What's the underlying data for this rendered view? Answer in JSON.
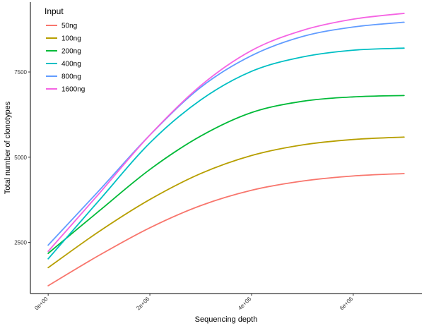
{
  "chart_data": {
    "type": "line",
    "xlabel": "Sequencing depth",
    "ylabel": "Total number of clonotypes",
    "xlim": [
      -350000,
      7350000
    ],
    "ylim": [
      1000,
      9550
    ],
    "x_ticks": [
      0,
      2000000,
      4000000,
      6000000
    ],
    "x_tick_labels": [
      "0e+00",
      "2e+06",
      "4e+06",
      "6e+06"
    ],
    "y_ticks": [
      2500,
      5000,
      7500
    ],
    "y_tick_labels": [
      "2500",
      "5000",
      "7500"
    ],
    "grid": false,
    "legend": {
      "title": "Input",
      "position": "top-left"
    },
    "x": [
      0,
      1000000,
      2000000,
      3000000,
      4000000,
      5000000,
      6000000,
      7000000
    ],
    "series": [
      {
        "name": "50ng",
        "color": "#F8766D",
        "values": [
          1230,
          2120,
          2930,
          3580,
          4030,
          4300,
          4450,
          4520
        ]
      },
      {
        "name": "100ng",
        "color": "#B79F00",
        "values": [
          1760,
          2820,
          3760,
          4520,
          5050,
          5360,
          5520,
          5590
        ]
      },
      {
        "name": "200ng",
        "color": "#00BA38",
        "values": [
          2180,
          3420,
          4640,
          5620,
          6310,
          6640,
          6770,
          6810
        ]
      },
      {
        "name": "400ng",
        "color": "#00BFC4",
        "values": [
          2020,
          3730,
          5420,
          6680,
          7520,
          7940,
          8140,
          8200
        ]
      },
      {
        "name": "800ng",
        "color": "#619CFF",
        "values": [
          2420,
          4020,
          5650,
          7050,
          7980,
          8540,
          8820,
          8960
        ]
      },
      {
        "name": "1600ng",
        "color": "#F564E3",
        "values": [
          2240,
          3930,
          5650,
          7100,
          8130,
          8720,
          9050,
          9220
        ]
      }
    ]
  }
}
